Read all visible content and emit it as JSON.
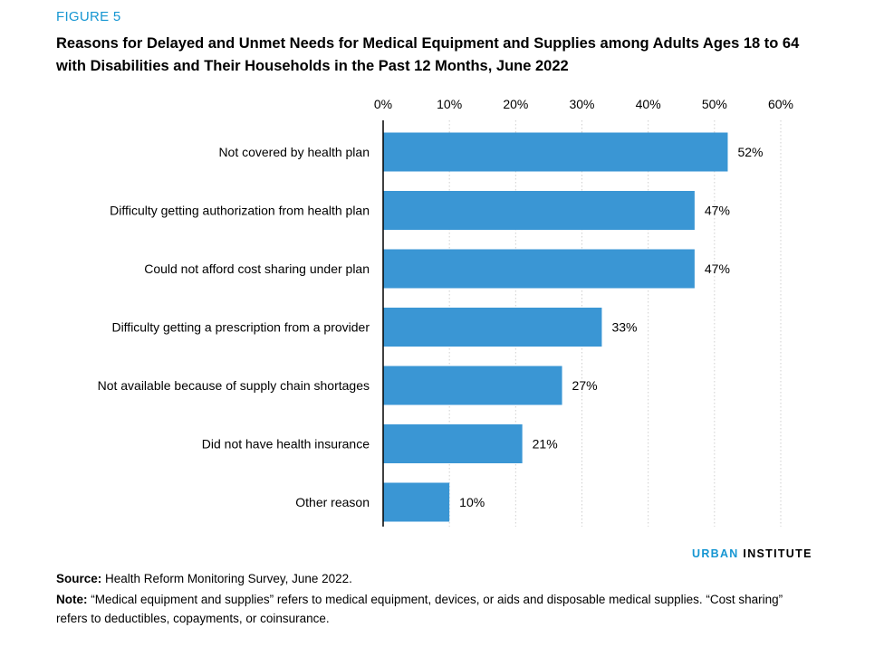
{
  "figure_label": "FIGURE 5",
  "title": "Reasons for Delayed and Unmet Needs for Medical Equipment and Supplies among Adults Ages 18 to 64 with Disabilities and Their Households in the Past 12 Months, June 2022",
  "brand": {
    "part1": "URBAN",
    "part2": "INSTITUTE"
  },
  "source": {
    "label": "Source:",
    "text": "Health Reform Monitoring Survey, June 2022."
  },
  "note": {
    "label": "Note:",
    "text": "“Medical equipment and supplies” refers to medical equipment, devices, or aids and disposable medical supplies. “Cost sharing” refers to deductibles, copayments, or coinsurance."
  },
  "colors": {
    "bar": "#3a96d4",
    "accent": "#1696d2",
    "grid": "#cfcfcf",
    "axis": "#000000"
  },
  "chart_data": {
    "type": "bar",
    "orientation": "horizontal",
    "categories": [
      "Not covered by health plan",
      "Difficulty getting authorization from health plan",
      "Could not afford cost sharing under plan",
      "Difficulty getting a prescription from a provider",
      "Not available because of supply chain shortages",
      "Did not have health insurance",
      "Other reason"
    ],
    "values": [
      52,
      47,
      47,
      33,
      27,
      21,
      10
    ],
    "data_labels": [
      "52%",
      "47%",
      "47%",
      "33%",
      "27%",
      "21%",
      "10%"
    ],
    "x_ticks": [
      0,
      10,
      20,
      30,
      40,
      50,
      60
    ],
    "x_tick_labels": [
      "0%",
      "10%",
      "20%",
      "30%",
      "40%",
      "50%",
      "60%"
    ],
    "xlim": [
      0,
      60
    ],
    "grid": true,
    "axis_position": "top"
  }
}
